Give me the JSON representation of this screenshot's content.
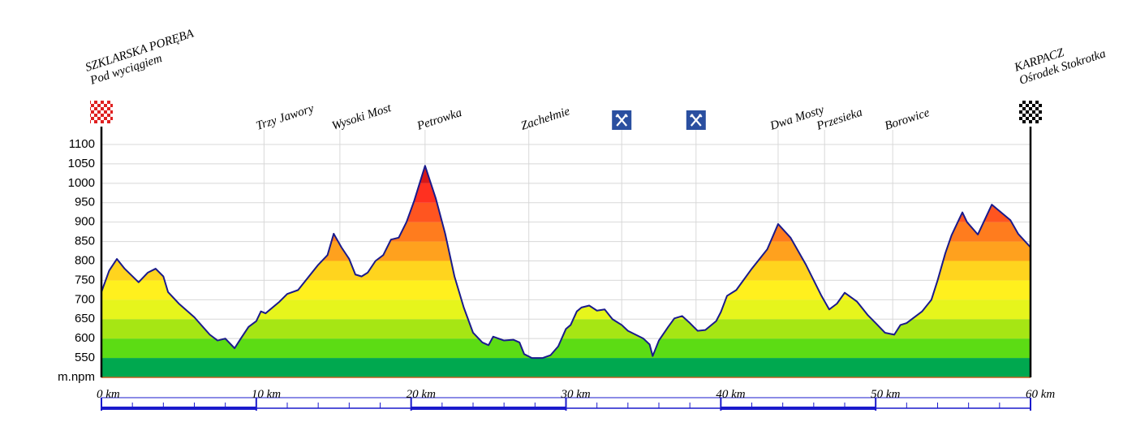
{
  "chart_data": {
    "type": "area",
    "x": [
      0,
      0.5,
      1,
      1.5,
      2.4,
      3,
      3.5,
      4,
      4.3,
      5,
      6,
      7,
      7.5,
      8,
      8.6,
      9,
      9.5,
      10,
      10.3,
      10.6,
      11.5,
      12,
      12.7,
      13.3,
      14,
      14.6,
      15,
      15.5,
      16,
      16.4,
      16.8,
      17.2,
      17.7,
      18.2,
      18.7,
      19.2,
      19.7,
      20.2,
      20.9,
      21.6,
      22.2,
      22.8,
      23.4,
      24,
      24.6,
      25,
      25.3,
      26,
      26.6,
      27,
      27.3,
      27.8,
      28.5,
      29,
      29.5,
      30,
      30.3,
      30.7,
      31,
      31.5,
      32,
      32.5,
      33,
      33.6,
      34,
      34.5,
      35,
      35.4,
      35.6,
      36,
      36.6,
      37,
      37.5,
      38,
      38.5,
      39,
      39.7,
      40,
      40.4,
      41,
      42,
      43,
      43.7,
      44.5,
      45.5,
      46,
      46.5,
      47,
      47.5,
      48,
      48.8,
      49.5,
      50,
      50.6,
      51.2,
      51.6,
      52,
      53,
      53.6,
      54,
      54.5,
      54.9,
      55.6,
      55.9,
      56.6,
      57.5,
      58.7,
      59.2,
      60
    ],
    "series": [
      {
        "color": "#1a1a8c",
        "values": [
          720,
          775,
          805,
          780,
          745,
          770,
          780,
          760,
          720,
          690,
          655,
          610,
          595,
          600,
          575,
          600,
          630,
          645,
          670,
          665,
          695,
          715,
          725,
          755,
          790,
          815,
          870,
          835,
          805,
          765,
          760,
          770,
          800,
          815,
          855,
          860,
          900,
          955,
          1045,
          960,
          870,
          760,
          680,
          615,
          590,
          583,
          605,
          595,
          597,
          590,
          560,
          550,
          550,
          557,
          580,
          625,
          635,
          670,
          680,
          685,
          672,
          675,
          650,
          635,
          620,
          610,
          600,
          585,
          555,
          595,
          630,
          652,
          658,
          640,
          620,
          622,
          645,
          668,
          710,
          725,
          780,
          830,
          895,
          860,
          790,
          750,
          710,
          675,
          690,
          718,
          695,
          660,
          640,
          615,
          610,
          635,
          640,
          670,
          700,
          750,
          820,
          866,
          925,
          900,
          868,
          945,
          905,
          870,
          835
        ]
      }
    ],
    "band_colors": [
      "#00a84f",
      "#5cdc14",
      "#a6e614",
      "#e6f51c",
      "#fff01e",
      "#ffd41e",
      "#ffa11e",
      "#ff7c1e",
      "#ff5520",
      "#ff3020",
      "#d81818",
      "#b01010"
    ],
    "xlim": [
      0,
      60
    ],
    "xticks": [
      {
        "value": 0,
        "label": "0 km"
      },
      {
        "value": 10,
        "label": "10 km"
      },
      {
        "value": 20,
        "label": "20 km"
      },
      {
        "value": 30,
        "label": "30 km"
      },
      {
        "value": 40,
        "label": "40 km"
      },
      {
        "value": 50,
        "label": "50 km"
      },
      {
        "value": 60,
        "label": "60 km"
      }
    ],
    "ylim": [
      500,
      1100
    ],
    "yticks": [
      {
        "value": 500,
        "label": "m.npm"
      },
      550,
      600,
      650,
      700,
      750,
      800,
      850,
      900,
      950,
      1000,
      1050,
      1100
    ],
    "grid": true,
    "start": {
      "x": 0,
      "lines": [
        "SZKLARSKA PORĘBA",
        "Pod wyciągiem"
      ]
    },
    "finish": {
      "x": 60,
      "lines": [
        "KARPACZ",
        "Ośrodek Stokrotka"
      ]
    },
    "waypoints": [
      {
        "x": 10.5,
        "label": "Trzy Jawory"
      },
      {
        "x": 15.4,
        "label": "Wysoki Most"
      },
      {
        "x": 20.9,
        "label": "Petrowka"
      },
      {
        "x": 27.6,
        "label": "Zachełmie"
      },
      {
        "x": 43.7,
        "label": "Dwa Mosty"
      },
      {
        "x": 46.7,
        "label": "Przesieka"
      },
      {
        "x": 51.1,
        "label": "Borowice"
      }
    ],
    "restaurants": [
      33.6,
      38.4
    ]
  }
}
